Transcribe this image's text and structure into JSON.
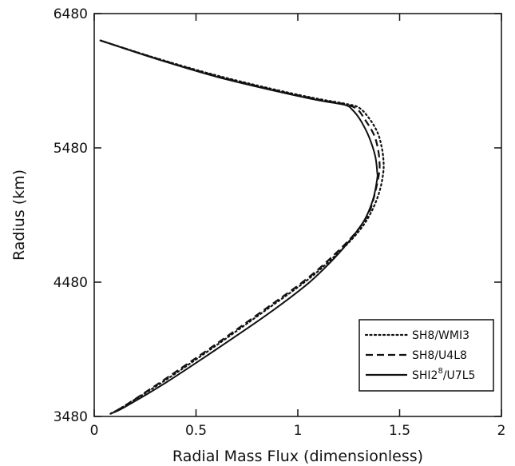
{
  "chart_data": {
    "type": "line",
    "xlabel": "Radial Mass Flux (dimensionless)",
    "ylabel": "Radius (km)",
    "xlim": [
      0,
      2
    ],
    "ylim": [
      3480,
      6480
    ],
    "x_ticks": [
      {
        "value": 0,
        "label": "0"
      },
      {
        "value": 0.5,
        "label": "0.5"
      },
      {
        "value": 1,
        "label": "1"
      },
      {
        "value": 1.5,
        "label": "1.5"
      },
      {
        "value": 2,
        "label": "2"
      }
    ],
    "y_ticks": [
      {
        "value": 3480,
        "label": "3480"
      },
      {
        "value": 4480,
        "label": "4480"
      },
      {
        "value": 5480,
        "label": "5480"
      },
      {
        "value": 6480,
        "label": "6480"
      }
    ],
    "grid": false,
    "legend": {
      "position": "bottom-right",
      "boxed": true
    },
    "series": [
      {
        "name": "SH8/WM13",
        "legend_label": "SH8/WMI3",
        "style": "dotted",
        "color": "#111111",
        "points": [
          [
            0.03,
            6280
          ],
          [
            0.3,
            6150
          ],
          [
            0.6,
            6020
          ],
          [
            0.9,
            5910
          ],
          [
            1.1,
            5845
          ],
          [
            1.23,
            5810
          ],
          [
            1.3,
            5780
          ],
          [
            1.35,
            5700
          ],
          [
            1.39,
            5600
          ],
          [
            1.41,
            5500
          ],
          [
            1.42,
            5400
          ],
          [
            1.42,
            5300
          ],
          [
            1.4,
            5150
          ],
          [
            1.36,
            5000
          ],
          [
            1.3,
            4860
          ],
          [
            1.2,
            4700
          ],
          [
            1.05,
            4500
          ],
          [
            0.85,
            4280
          ],
          [
            0.6,
            4010
          ],
          [
            0.35,
            3750
          ],
          [
            0.15,
            3560
          ],
          [
            0.08,
            3500
          ]
        ]
      },
      {
        "name": "SH8/U4L8",
        "legend_label": "SH8/U4L8",
        "style": "dashed",
        "color": "#111111",
        "points": [
          [
            0.03,
            6280
          ],
          [
            0.3,
            6148
          ],
          [
            0.6,
            6015
          ],
          [
            0.9,
            5905
          ],
          [
            1.1,
            5840
          ],
          [
            1.23,
            5805
          ],
          [
            1.29,
            5770
          ],
          [
            1.33,
            5690
          ],
          [
            1.37,
            5590
          ],
          [
            1.39,
            5500
          ],
          [
            1.4,
            5400
          ],
          [
            1.4,
            5300
          ],
          [
            1.38,
            5150
          ],
          [
            1.35,
            5000
          ],
          [
            1.29,
            4860
          ],
          [
            1.19,
            4700
          ],
          [
            1.04,
            4500
          ],
          [
            0.84,
            4280
          ],
          [
            0.59,
            4010
          ],
          [
            0.34,
            3750
          ],
          [
            0.15,
            3560
          ],
          [
            0.08,
            3500
          ]
        ]
      },
      {
        "name": "SH12^8/U7L5",
        "legend_label": "SHI2",
        "legend_superscript": "8",
        "legend_suffix": "/U7L5",
        "style": "solid",
        "color": "#111111",
        "points": [
          [
            0.03,
            6280
          ],
          [
            0.3,
            6145
          ],
          [
            0.6,
            6010
          ],
          [
            0.9,
            5900
          ],
          [
            1.1,
            5835
          ],
          [
            1.23,
            5800
          ],
          [
            1.27,
            5760
          ],
          [
            1.31,
            5680
          ],
          [
            1.35,
            5560
          ],
          [
            1.38,
            5420
          ],
          [
            1.39,
            5300
          ],
          [
            1.39,
            5250
          ],
          [
            1.37,
            5100
          ],
          [
            1.33,
            4950
          ],
          [
            1.27,
            4820
          ],
          [
            1.18,
            4660
          ],
          [
            1.05,
            4470
          ],
          [
            0.86,
            4250
          ],
          [
            0.6,
            3980
          ],
          [
            0.35,
            3730
          ],
          [
            0.15,
            3550
          ],
          [
            0.08,
            3500
          ]
        ]
      }
    ]
  }
}
